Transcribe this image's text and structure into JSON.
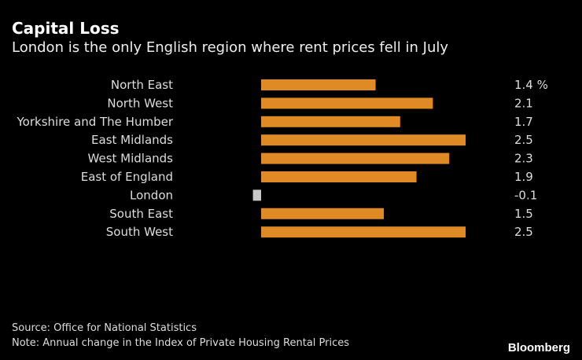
{
  "chart_data": {
    "type": "bar",
    "orientation": "horizontal",
    "title": "Capital Loss",
    "subtitle": "London is the only English region where rent prices fell in July",
    "categories": [
      "North East",
      "North West",
      "Yorkshire and The Humber",
      "East Midlands",
      "West Midlands",
      "East of England",
      "London",
      "South East",
      "South West"
    ],
    "values": [
      1.4,
      2.1,
      1.7,
      2.5,
      2.3,
      1.9,
      -0.1,
      1.5,
      2.5
    ],
    "value_labels": [
      "1.4 %",
      "2.1",
      "1.7",
      "2.5",
      "2.3",
      "1.9",
      "-0.1",
      "1.5",
      "2.5"
    ],
    "unit": "%",
    "xlabel": "",
    "ylabel": "",
    "xlim": [
      -0.1,
      2.5
    ],
    "colors": {
      "positive": "#E08A25",
      "negative": "#C8C8C8"
    },
    "grid": false,
    "legend": "none"
  },
  "footer": {
    "source": "Source: Office for National Statistics",
    "note": "Note: Annual change in the Index of Private Housing Rental Prices",
    "brand": "Bloomberg"
  }
}
